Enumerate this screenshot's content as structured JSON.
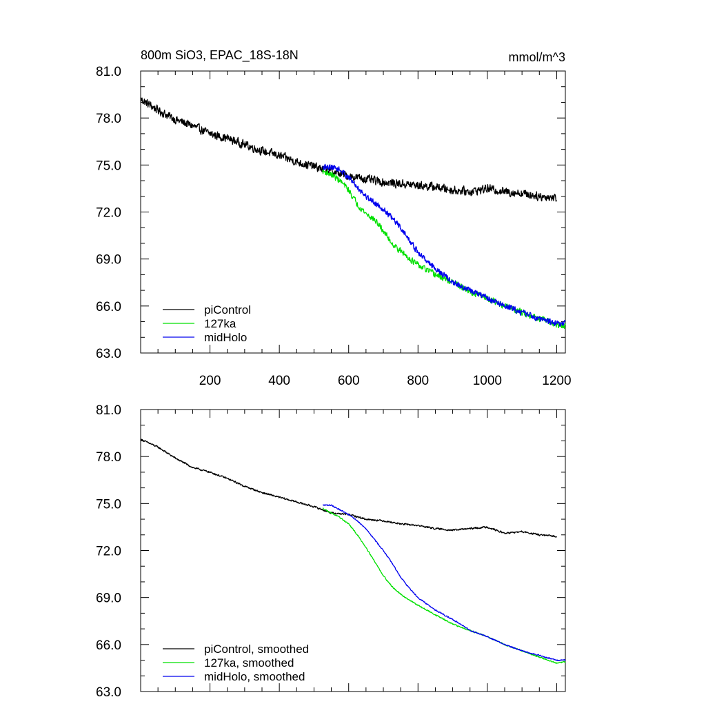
{
  "figure": {
    "title": "800m SiO3, EPAC_18S-18N",
    "units": "mmol/m^3"
  },
  "chart_data": [
    {
      "type": "line",
      "panel": "raw",
      "title": "800m SiO3, EPAC_18S-18N",
      "units_label": "mmol/m^3",
      "xlabel": "",
      "ylabel": "",
      "xlim": [
        0,
        1225
      ],
      "ylim": [
        63.0,
        81.0
      ],
      "xticks": [
        200,
        400,
        600,
        800,
        1000,
        1200
      ],
      "xtick_labels": [
        "200",
        "400",
        "600",
        "800",
        "1000",
        "1200"
      ],
      "yticks": [
        63.0,
        66.0,
        69.0,
        72.0,
        75.0,
        78.0,
        81.0
      ],
      "ytick_labels": [
        "63.0",
        "66.0",
        "69.0",
        "72.0",
        "75.0",
        "78.0",
        "81.0"
      ],
      "legend_position": "bottom-left",
      "series": [
        {
          "name": "piControl",
          "color": "#000000",
          "noise": 0.35,
          "points": [
            [
              0,
              79.2
            ],
            [
              50,
              78.5
            ],
            [
              100,
              77.9
            ],
            [
              150,
              77.5
            ],
            [
              200,
              77.0
            ],
            [
              250,
              76.7
            ],
            [
              300,
              76.3
            ],
            [
              350,
              75.9
            ],
            [
              400,
              75.6
            ],
            [
              450,
              75.2
            ],
            [
              500,
              74.9
            ],
            [
              550,
              74.6
            ],
            [
              600,
              74.3
            ],
            [
              650,
              74.1
            ],
            [
              700,
              73.9
            ],
            [
              750,
              73.8
            ],
            [
              800,
              73.7
            ],
            [
              850,
              73.6
            ],
            [
              900,
              73.4
            ],
            [
              950,
              73.3
            ],
            [
              1000,
              73.5
            ],
            [
              1050,
              73.3
            ],
            [
              1100,
              73.2
            ],
            [
              1150,
              73.0
            ],
            [
              1200,
              72.9
            ]
          ]
        },
        {
          "name": "127ka",
          "color": "#00e000",
          "noise": 0.25,
          "points": [
            [
              525,
              74.6
            ],
            [
              550,
              74.4
            ],
            [
              575,
              74.0
            ],
            [
              600,
              73.4
            ],
            [
              625,
              72.5
            ],
            [
              650,
              71.9
            ],
            [
              675,
              71.5
            ],
            [
              700,
              70.8
            ],
            [
              725,
              70.0
            ],
            [
              750,
              69.5
            ],
            [
              800,
              68.6
            ],
            [
              850,
              68.0
            ],
            [
              900,
              67.5
            ],
            [
              950,
              66.9
            ],
            [
              1000,
              66.5
            ],
            [
              1050,
              66.0
            ],
            [
              1100,
              65.6
            ],
            [
              1150,
              65.2
            ],
            [
              1200,
              64.8
            ],
            [
              1225,
              64.7
            ]
          ]
        },
        {
          "name": "midHolo",
          "color": "#0000ee",
          "noise": 0.25,
          "points": [
            [
              525,
              74.8
            ],
            [
              550,
              74.9
            ],
            [
              575,
              74.7
            ],
            [
              600,
              74.2
            ],
            [
              625,
              73.6
            ],
            [
              650,
              73.0
            ],
            [
              675,
              72.6
            ],
            [
              700,
              72.2
            ],
            [
              725,
              71.6
            ],
            [
              750,
              71.0
            ],
            [
              775,
              70.2
            ],
            [
              800,
              69.4
            ],
            [
              850,
              68.4
            ],
            [
              900,
              67.5
            ],
            [
              950,
              67.0
            ],
            [
              1000,
              66.5
            ],
            [
              1050,
              66.0
            ],
            [
              1100,
              65.6
            ],
            [
              1150,
              65.2
            ],
            [
              1200,
              64.9
            ],
            [
              1225,
              64.9
            ]
          ]
        }
      ]
    },
    {
      "type": "line",
      "panel": "smoothed",
      "title": "",
      "xlabel": "",
      "ylabel": "",
      "xlim": [
        0,
        1225
      ],
      "ylim": [
        63.0,
        81.0
      ],
      "xticks": [
        200,
        400,
        600,
        800,
        1000,
        1200
      ],
      "yticks": [
        63.0,
        66.0,
        69.0,
        72.0,
        75.0,
        78.0,
        81.0
      ],
      "ytick_labels": [
        "63.0",
        "66.0",
        "69.0",
        "72.0",
        "75.0",
        "78.0",
        "81.0"
      ],
      "legend_position": "bottom-left",
      "series": [
        {
          "name": "piControl, smoothed",
          "color": "#000000",
          "noise": 0.07,
          "points": [
            [
              0,
              79.1
            ],
            [
              50,
              78.6
            ],
            [
              100,
              77.9
            ],
            [
              150,
              77.3
            ],
            [
              200,
              77.0
            ],
            [
              250,
              76.6
            ],
            [
              300,
              76.1
            ],
            [
              350,
              75.7
            ],
            [
              400,
              75.4
            ],
            [
              450,
              75.1
            ],
            [
              500,
              74.8
            ],
            [
              550,
              74.4
            ],
            [
              600,
              74.3
            ],
            [
              650,
              74.0
            ],
            [
              700,
              73.9
            ],
            [
              750,
              73.7
            ],
            [
              800,
              73.6
            ],
            [
              850,
              73.4
            ],
            [
              900,
              73.3
            ],
            [
              950,
              73.4
            ],
            [
              1000,
              73.5
            ],
            [
              1050,
              73.1
            ],
            [
              1100,
              73.2
            ],
            [
              1150,
              73.0
            ],
            [
              1200,
              72.9
            ]
          ]
        },
        {
          "name": "127ka, smoothed",
          "color": "#00e000",
          "noise": 0.05,
          "points": [
            [
              525,
              74.7
            ],
            [
              550,
              74.4
            ],
            [
              575,
              74.1
            ],
            [
              600,
              73.7
            ],
            [
              625,
              73.0
            ],
            [
              650,
              72.2
            ],
            [
              675,
              71.3
            ],
            [
              700,
              70.4
            ],
            [
              725,
              69.7
            ],
            [
              750,
              69.2
            ],
            [
              800,
              68.5
            ],
            [
              850,
              67.9
            ],
            [
              900,
              67.3
            ],
            [
              950,
              66.9
            ],
            [
              1000,
              66.5
            ],
            [
              1050,
              66.0
            ],
            [
              1100,
              65.6
            ],
            [
              1150,
              65.2
            ],
            [
              1200,
              64.8
            ],
            [
              1225,
              64.9
            ]
          ]
        },
        {
          "name": "midHolo, smoothed",
          "color": "#0000ee",
          "noise": 0.05,
          "points": [
            [
              525,
              74.9
            ],
            [
              550,
              74.9
            ],
            [
              575,
              74.6
            ],
            [
              600,
              74.3
            ],
            [
              625,
              73.9
            ],
            [
              650,
              73.4
            ],
            [
              675,
              72.7
            ],
            [
              700,
              72.0
            ],
            [
              725,
              71.2
            ],
            [
              750,
              70.3
            ],
            [
              775,
              69.6
            ],
            [
              800,
              69.0
            ],
            [
              850,
              68.2
            ],
            [
              900,
              67.6
            ],
            [
              950,
              66.9
            ],
            [
              1000,
              66.5
            ],
            [
              1050,
              66.0
            ],
            [
              1100,
              65.6
            ],
            [
              1150,
              65.3
            ],
            [
              1200,
              65.0
            ],
            [
              1225,
              65.0
            ]
          ]
        }
      ]
    }
  ]
}
